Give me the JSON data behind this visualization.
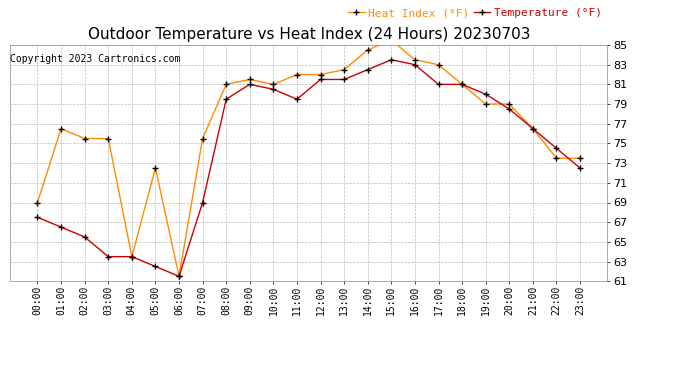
{
  "title": "Outdoor Temperature vs Heat Index (24 Hours) 20230703",
  "copyright": "Copyright 2023 Cartronics.com",
  "legend_heat": "Heat Index (°F)",
  "legend_temp": "Temperature (°F)",
  "hours": [
    "00:00",
    "01:00",
    "02:00",
    "03:00",
    "04:00",
    "05:00",
    "06:00",
    "07:00",
    "08:00",
    "09:00",
    "10:00",
    "11:00",
    "12:00",
    "13:00",
    "14:00",
    "15:00",
    "16:00",
    "17:00",
    "18:00",
    "19:00",
    "20:00",
    "21:00",
    "22:00",
    "23:00"
  ],
  "temperature": [
    67.5,
    66.5,
    65.5,
    63.5,
    63.5,
    62.5,
    61.5,
    69.0,
    79.5,
    81.0,
    80.5,
    79.5,
    81.5,
    81.5,
    82.5,
    83.5,
    83.0,
    81.0,
    81.0,
    80.0,
    78.5,
    76.5,
    74.5,
    72.5
  ],
  "heat_index": [
    69.0,
    76.5,
    75.5,
    75.5,
    63.5,
    72.5,
    61.5,
    75.5,
    81.0,
    81.5,
    81.0,
    82.0,
    82.0,
    82.5,
    84.5,
    85.5,
    83.5,
    83.0,
    81.0,
    79.0,
    79.0,
    76.5,
    73.5,
    73.5
  ],
  "ylim_min": 61.0,
  "ylim_max": 85.0,
  "y_ticks": [
    61.0,
    63.0,
    65.0,
    67.0,
    69.0,
    71.0,
    73.0,
    75.0,
    77.0,
    79.0,
    81.0,
    83.0,
    85.0
  ],
  "temp_color": "#cc0000",
  "heat_color": "#ff8c00",
  "bg_color": "#ffffff",
  "grid_color": "#bbbbbb",
  "title_fontsize": 11,
  "copyright_fontsize": 7,
  "legend_fontsize": 8
}
